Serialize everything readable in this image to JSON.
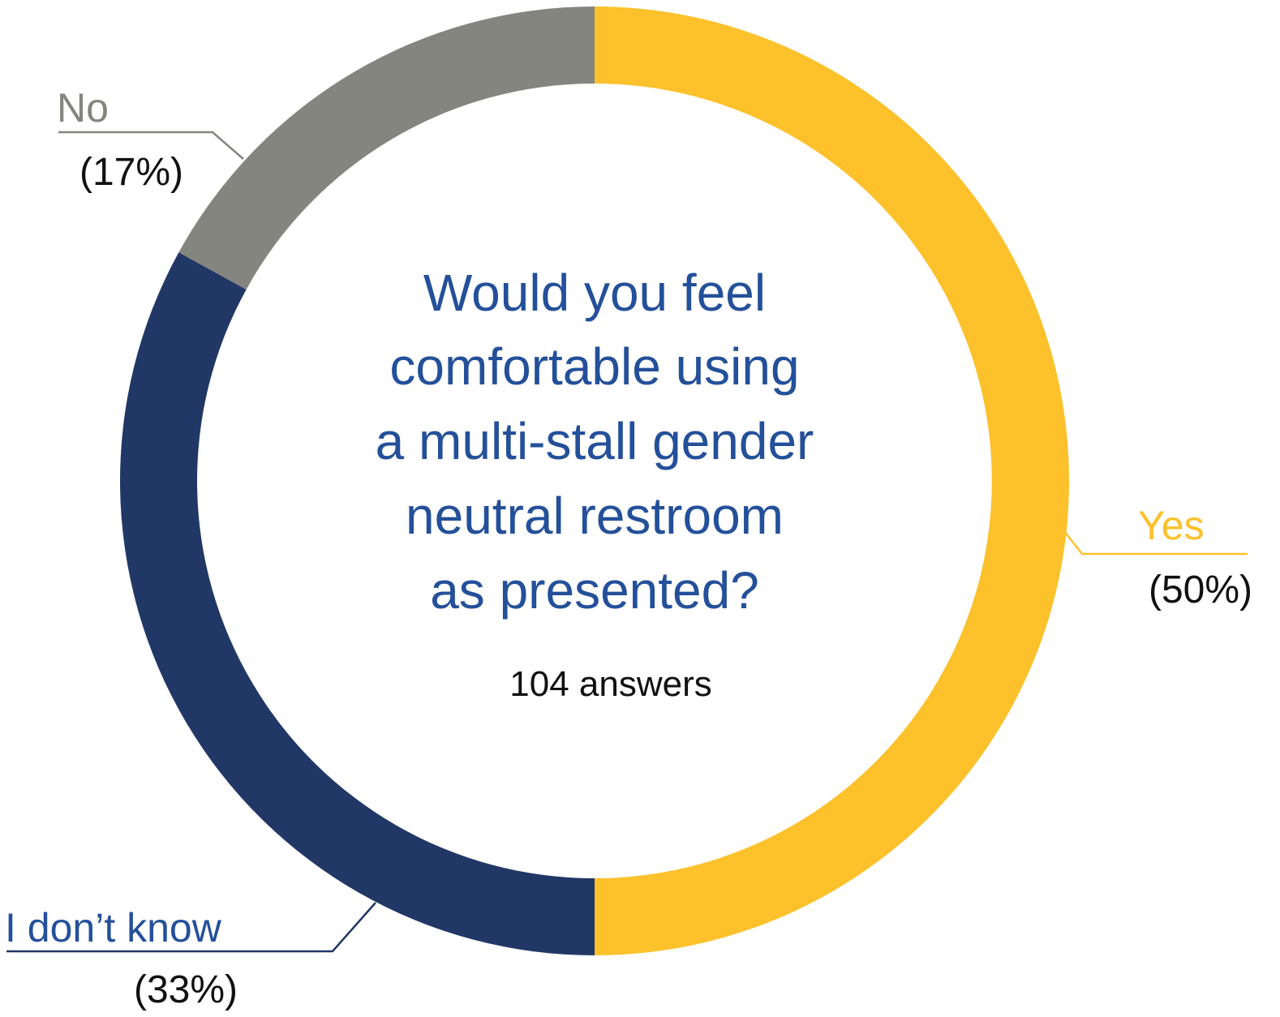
{
  "chart_data": {
    "type": "pie",
    "style": "donut",
    "title_lines": [
      "Would you feel",
      "comfortable using",
      "a multi-stall gender",
      "neutral restroom",
      "as presented?"
    ],
    "subtitle": "104 answers",
    "slices": [
      {
        "label": "Yes",
        "pct_label": "(50%)",
        "value": 50,
        "color": "#fcc12b"
      },
      {
        "label": "I don’t know",
        "pct_label": "(33%)",
        "value": 33,
        "color": "#213766"
      },
      {
        "label": "No",
        "pct_label": "(17%)",
        "value": 17,
        "color": "#858580"
      }
    ]
  }
}
